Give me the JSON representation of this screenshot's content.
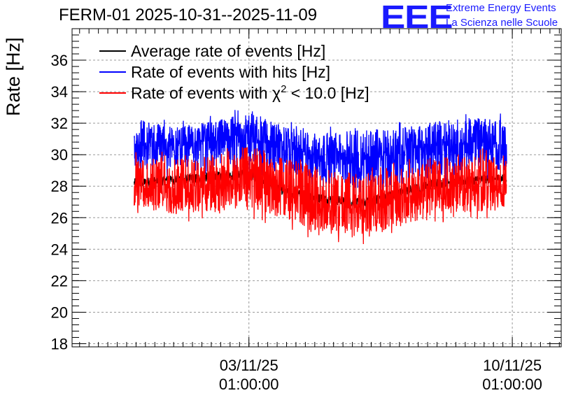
{
  "chart_data": {
    "type": "line",
    "title": "FERM-01 2025-10-31--2025-11-09",
    "ylabel": "Rate [Hz]",
    "xlabel": "",
    "ylim": [
      17.8,
      38.0
    ],
    "yticks": [
      "18",
      "20",
      "22",
      "24",
      "26",
      "28",
      "30",
      "32",
      "34",
      "36"
    ],
    "xlim_days": [
      -4.7,
      8.3
    ],
    "xticks": [
      {
        "day": 0,
        "label_date": "03/11/25",
        "label_time": "01:00:00"
      },
      {
        "day": 7,
        "label_date": "10/11/25",
        "label_time": "01:00:00"
      }
    ],
    "x_start_day": -3.05,
    "x_end_day": 6.85,
    "grid": true,
    "legend_position": "top-left",
    "legend_prefix_chi": "Rate of events with ",
    "legend_suffix_chi": " < 10.0 [Hz]",
    "series": [
      {
        "name": "Average rate of events [Hz]",
        "color": "#000000",
        "x_days": [
          -3,
          -2,
          -1,
          0,
          1,
          2,
          3,
          4,
          5,
          6,
          6.85
        ],
        "values": [
          28.2,
          28.4,
          28.6,
          28.8,
          27.6,
          27.2,
          26.9,
          27.6,
          28.2,
          28.4,
          28.5
        ]
      },
      {
        "name": "Rate of events with hits [Hz]",
        "color": "#0000ff",
        "x_days": [
          -3,
          -2,
          -1,
          0,
          1,
          2,
          3,
          4,
          5,
          6,
          6.85
        ],
        "values": [
          30.6,
          30.4,
          30.8,
          31.0,
          30.4,
          29.8,
          29.6,
          30.0,
          30.5,
          30.6,
          30.6
        ],
        "band_low": [
          29.0,
          29.2,
          29.0,
          29.2,
          28.6,
          28.2,
          27.6,
          28.0,
          28.6,
          29.0,
          29.0
        ],
        "band_high": [
          32.2,
          31.6,
          32.0,
          32.6,
          31.6,
          31.2,
          31.4,
          31.6,
          32.0,
          32.2,
          32.0
        ]
      },
      {
        "name": "Rate of events with χ² < 10.0 [Hz]",
        "color": "#ff0000",
        "x_days": [
          -3,
          -2,
          -1,
          0,
          1,
          2,
          3,
          4,
          5,
          6,
          6.85
        ],
        "values": [
          27.8,
          27.7,
          28.0,
          28.4,
          27.6,
          26.8,
          26.4,
          27.0,
          27.8,
          27.9,
          27.9
        ],
        "band_low": [
          26.6,
          26.2,
          26.4,
          26.6,
          25.8,
          25.0,
          24.6,
          25.4,
          26.2,
          26.4,
          26.4
        ],
        "band_high": [
          29.6,
          29.6,
          29.8,
          30.4,
          29.6,
          28.8,
          28.6,
          29.0,
          29.8,
          29.8,
          29.8
        ]
      }
    ]
  },
  "logo": {
    "mark": "EEE",
    "line1": "Extreme Energy Events",
    "line2": "La Scienza nelle Scuole",
    "color": "#1a1aff"
  }
}
